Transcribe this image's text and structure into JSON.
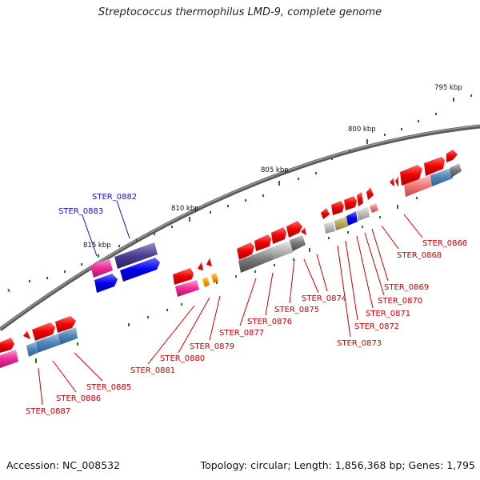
{
  "title": "Streptococcus thermophilus LMD-9, complete genome",
  "footer": {
    "accession": "Accession: NC_008532",
    "summary": "Topology: circular; Length: 1,856,368 bp; Genes: 1,795"
  },
  "scale_labels": [
    "795 kbp",
    "800 kbp",
    "805 kbp",
    "810 kbp",
    "815 kbp"
  ],
  "colors": {
    "backbone": "#777777",
    "tick": "#1a7a1a",
    "label_red": "#cc0000",
    "label_blue": "#1111cc"
  },
  "gene_labels": [
    "STER_0866",
    "STER_0868",
    "STER_0869",
    "STER_0870",
    "STER_0871",
    "STER_0872",
    "STER_0873",
    "STER_0874",
    "STER_0875",
    "STER_0876",
    "STER_0877",
    "STER_0879",
    "STER_0880",
    "STER_0881",
    "STER_0885",
    "STER_0886",
    "STER_0887",
    "STER_0882",
    "STER_0883"
  ]
}
